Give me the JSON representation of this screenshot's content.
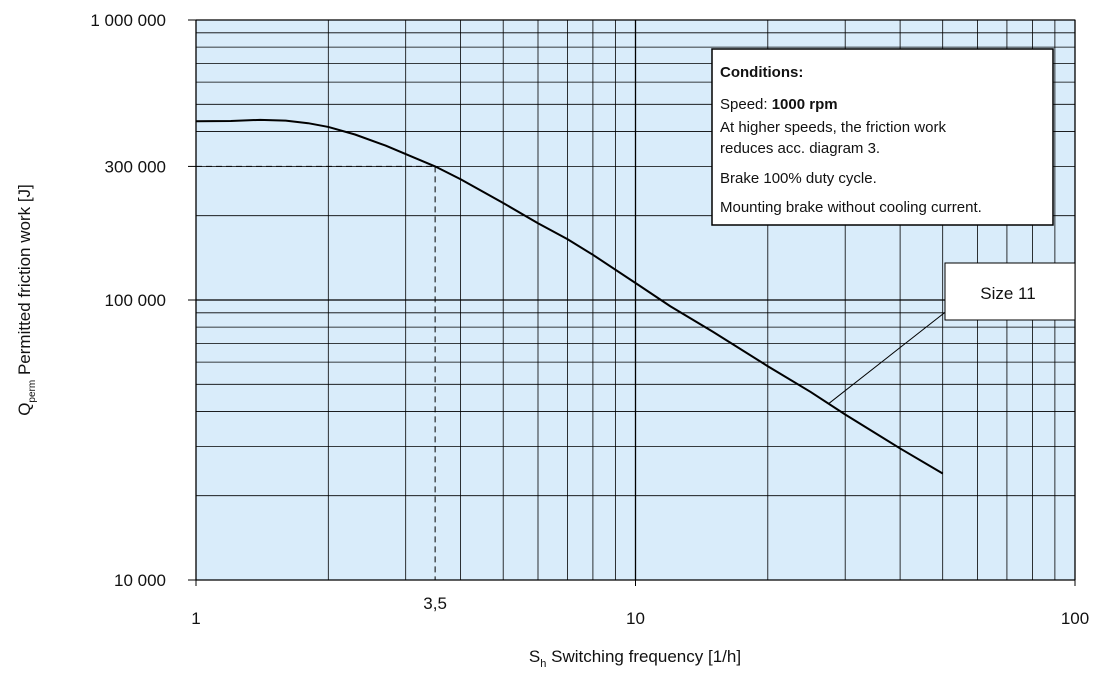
{
  "chart_data": {
    "type": "line",
    "xscale": "log",
    "yscale": "log",
    "xlim": [
      1,
      100
    ],
    "ylim": [
      10000,
      1000000
    ],
    "grid": true,
    "background": "#d9ecfa",
    "line_color": "#000000",
    "xlabel": {
      "main": "S",
      "sub": "h",
      "rest": " Switching frequency [1/h]"
    },
    "ylabel": {
      "main": "Q",
      "sub": "perm",
      "rest": " Permitted friction work [J]"
    },
    "x_ticks": [
      {
        "value": 1,
        "label": "1"
      },
      {
        "value": 10,
        "label": "10"
      },
      {
        "value": 100,
        "label": "100"
      }
    ],
    "y_ticks": [
      {
        "value": 10000,
        "label": "10 000"
      },
      {
        "value": 100000,
        "label": "100 000"
      },
      {
        "value": 300000,
        "label": "300 000"
      },
      {
        "value": 1000000,
        "label": "1 000 000"
      }
    ],
    "marker": {
      "x": 3.5,
      "y": 300000,
      "x_label": "3,5"
    },
    "series": [
      {
        "name": "Size 11",
        "x": [
          1,
          1.2,
          1.4,
          1.6,
          1.8,
          2,
          2.3,
          2.7,
          3,
          3.5,
          4,
          5,
          6,
          7,
          8,
          10,
          12,
          15,
          20,
          25,
          30,
          40,
          50
        ],
        "y": [
          435000,
          436000,
          440000,
          437000,
          428000,
          415000,
          390000,
          356000,
          332000,
          300000,
          270000,
          222000,
          188000,
          165000,
          145000,
          115000,
          95000,
          77000,
          58000,
          47000,
          39000,
          29500,
          24000
        ]
      }
    ],
    "series_label": {
      "text": "Size 11",
      "anchor_x": 27.5
    },
    "conditions_box": {
      "title": "Conditions:",
      "speed_prefix": "Speed: ",
      "speed_value": "1000 rpm",
      "line2": "At higher speeds, the friction work",
      "line3": "reduces acc. diagram 3.",
      "line4": "Brake 100% duty cycle.",
      "line5": "Mounting brake without cooling current."
    }
  }
}
